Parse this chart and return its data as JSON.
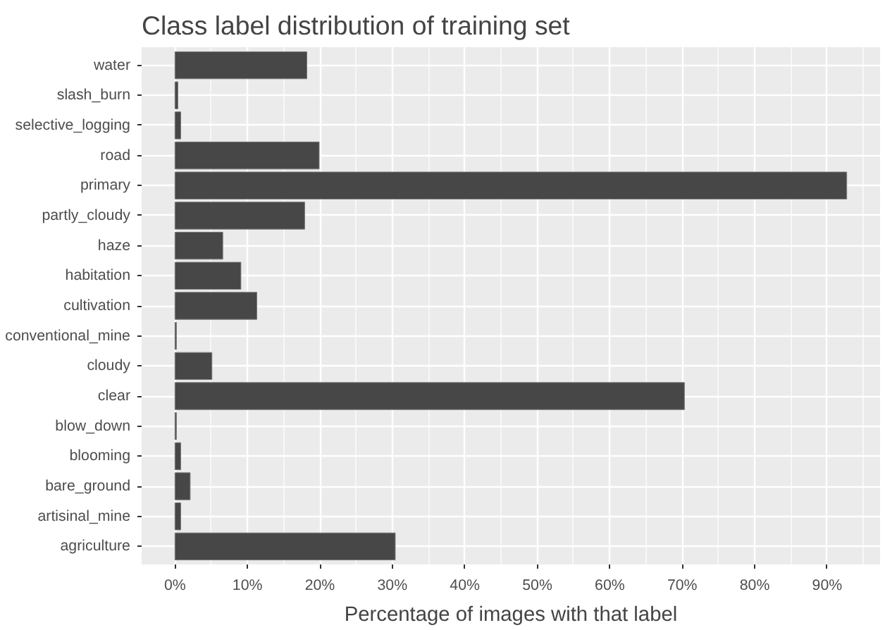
{
  "chart_data": {
    "type": "bar",
    "orientation": "horizontal",
    "title": "Class label distribution of training set",
    "xlabel": "Percentage of images with that label",
    "categories": [
      "water",
      "slash_burn",
      "selective_logging",
      "road",
      "primary",
      "partly_cloudy",
      "haze",
      "habitation",
      "cultivation",
      "conventional_mine",
      "cloudy",
      "clear",
      "blow_down",
      "blooming",
      "bare_ground",
      "artisinal_mine",
      "agriculture"
    ],
    "values": [
      18.2,
      0.4,
      0.8,
      19.9,
      92.7,
      17.9,
      6.6,
      9.1,
      11.3,
      0.2,
      5.1,
      70.3,
      0.2,
      0.8,
      2.1,
      0.8,
      30.4
    ],
    "color": "#474747",
    "xlim": [
      -4.6,
      97.3
    ],
    "xticks": [
      {
        "value": 0,
        "label": "0%"
      },
      {
        "value": 10,
        "label": "10%"
      },
      {
        "value": 20,
        "label": "20%"
      },
      {
        "value": 30,
        "label": "30%"
      },
      {
        "value": 40,
        "label": "40%"
      },
      {
        "value": 50,
        "label": "50%"
      },
      {
        "value": 60,
        "label": "60%"
      },
      {
        "value": 70,
        "label": "70%"
      },
      {
        "value": 80,
        "label": "80%"
      },
      {
        "value": 90,
        "label": "90%"
      }
    ],
    "grid": true
  }
}
